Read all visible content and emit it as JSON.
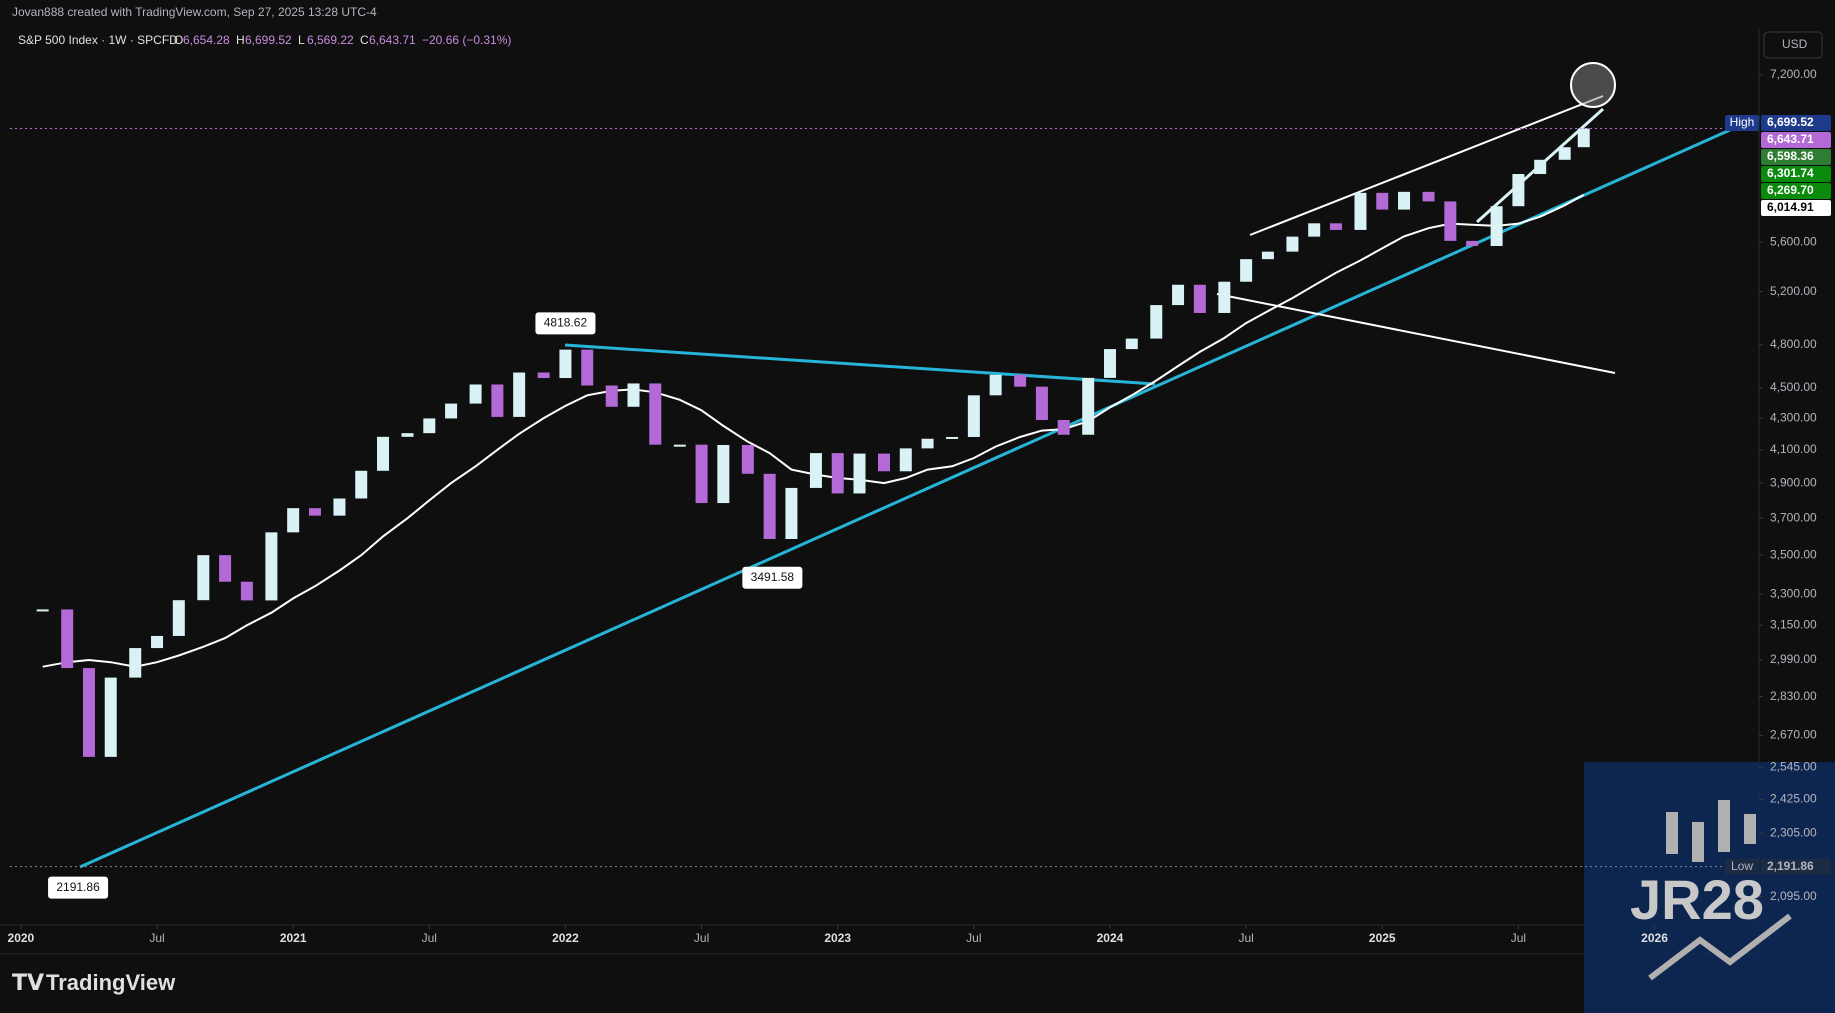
{
  "header": "Jovan888 created with TradingView.com, Sep 27, 2025 13:28 UTC-4",
  "footer": "TradingView",
  "watermark": "JR28",
  "chart_data": {
    "type": "candlestick",
    "symbol": "S&P 500 Index · 1W · SPCFD",
    "ohlc": [
      {
        "key": "O",
        "value": "6,654.28"
      },
      {
        "key": "H",
        "value": "6,699.52"
      },
      {
        "key": "L",
        "value": "6,569.22"
      },
      {
        "key": "C",
        "value": "6,643.71"
      }
    ],
    "change": "−20.66 (−0.31%)",
    "currency": "USD",
    "log_scale": true,
    "xlim": [
      2019.96,
      2026.38
    ],
    "ylim": [
      2008,
      7727
    ],
    "xticks": [
      2020,
      {
        "value": 2020.5,
        "label": "Jul"
      },
      2021,
      {
        "value": 2021.5,
        "label": "Jul"
      },
      2022,
      {
        "value": 2022.5,
        "label": "Jul"
      },
      2023,
      {
        "value": 2023.5,
        "label": "Jul"
      },
      2024,
      {
        "value": 2024.5,
        "label": "Jul"
      },
      2025,
      {
        "value": 2025.5,
        "label": "Jul"
      },
      2026
    ],
    "yticks": [
      {
        "value": 7200,
        "label": "7,200.00"
      },
      {
        "value": 5600,
        "label": "5,600.00"
      },
      {
        "value": 5200,
        "label": "5,200.00"
      },
      {
        "value": 4800,
        "label": "4,800.00"
      },
      {
        "value": 4500,
        "label": "4,500.00"
      },
      {
        "value": 4300,
        "label": "4,300.00"
      },
      {
        "value": 4100,
        "label": "4,100.00"
      },
      {
        "value": 3900,
        "label": "3,900.00"
      },
      {
        "value": 3700,
        "label": "3,700.00"
      },
      {
        "value": 3500,
        "label": "3,500.00"
      },
      {
        "value": 3300,
        "label": "3,300.00"
      },
      {
        "value": 3150,
        "label": "3,150.00"
      },
      {
        "value": 2990,
        "label": "2,990.00"
      },
      {
        "value": 2830,
        "label": "2,830.00"
      },
      {
        "value": 2670,
        "label": "2,670.00"
      },
      {
        "value": 2545,
        "label": "2,545.00"
      },
      {
        "value": 2425,
        "label": "2,425.00"
      },
      {
        "value": 2305,
        "label": "2,305.00"
      },
      {
        "value": 2095,
        "label": "2,095.00"
      }
    ],
    "x": [
      2020.08,
      2020.17,
      2020.25,
      2020.33,
      2020.42,
      2020.5,
      2020.58,
      2020.67,
      2020.75,
      2020.83,
      2020.92,
      2021.0,
      2021.08,
      2021.17,
      2021.25,
      2021.33,
      2021.42,
      2021.5,
      2021.58,
      2021.67,
      2021.75,
      2021.83,
      2021.92,
      2022.0,
      2022.08,
      2022.17,
      2022.25,
      2022.33,
      2022.42,
      2022.5,
      2022.58,
      2022.67,
      2022.75,
      2022.83,
      2022.92,
      2023.0,
      2023.08,
      2023.17,
      2023.25,
      2023.33,
      2023.42,
      2023.5,
      2023.58,
      2023.67,
      2023.75,
      2023.83,
      2023.92,
      2024.0,
      2024.08,
      2024.17,
      2024.25,
      2024.33,
      2024.42,
      2024.5,
      2024.58,
      2024.67,
      2024.75,
      2024.83,
      2024.92,
      2025.0,
      2025.08,
      2025.17,
      2025.25,
      2025.33,
      2025.42,
      2025.5,
      2025.58,
      2025.67,
      2025.74
    ],
    "series": [
      {
        "up_color": "#d9f2f5",
        "down_color": "#b36ad6",
        "values": [
          3226,
          2954,
          2585,
          2912,
          3044,
          3100,
          3271,
          3500,
          3363,
          3270,
          3622,
          3756,
          3714,
          3811,
          3973,
          4181,
          4204,
          4298,
          4395,
          4523,
          4308,
          4605,
          4567,
          4766,
          4516,
          4374,
          4530,
          4132,
          4132,
          3785,
          4130,
          3955,
          3586,
          3872,
          4080,
          3840,
          4077,
          3970,
          4109,
          4169,
          4180,
          4450,
          4589,
          4508,
          4288,
          4194,
          4568,
          4770,
          4846,
          5096,
          5254,
          5036,
          5278,
          5460,
          5522,
          5648,
          5762,
          5705,
          6032,
          5882,
          6041,
          5955,
          5612,
          5569,
          5912,
          6205,
          6339,
          6460,
          6643.71
        ]
      },
      {
        "color": "#ffffff",
        "values": [
          2960,
          2980,
          2990,
          2980,
          2960,
          2980,
          3010,
          3050,
          3090,
          3150,
          3210,
          3280,
          3340,
          3420,
          3500,
          3600,
          3700,
          3800,
          3900,
          4000,
          4100,
          4200,
          4300,
          4380,
          4450,
          4480,
          4490,
          4470,
          4420,
          4350,
          4250,
          4150,
          4080,
          3980,
          3950,
          3930,
          3920,
          3900,
          3930,
          3980,
          4000,
          4050,
          4120,
          4180,
          4220,
          4230,
          4280,
          4370,
          4450,
          4550,
          4650,
          4750,
          4850,
          4960,
          5050,
          5150,
          5250,
          5350,
          5450,
          5550,
          5650,
          5720,
          5760,
          5750,
          5740,
          5760,
          5820,
          5920,
          6014.91
        ]
      }
    ],
    "annotations": [
      {
        "x": 2020.21,
        "value": 2191.86
      },
      {
        "x": 2022.0,
        "value": 4818.62
      },
      {
        "x": 2022.76,
        "value": 3491.58
      }
    ],
    "price_labels": [
      {
        "tag": "High",
        "value": 6699.52,
        "label": "6,699.52",
        "color": "#1e3a8a",
        "text_color": "#ffffff"
      },
      {
        "value": 6643.71,
        "label": "6,643.71",
        "color": "#b36ad6",
        "text_color": "#ffffff",
        "dotted": true
      },
      {
        "value": 6598.36,
        "label": "6,598.36",
        "color": "#2e7d32",
        "text_color": "#ffffff"
      },
      {
        "value": 6301.74,
        "label": "6,301.74",
        "color": "#0a8a0a",
        "text_color": "#ffffff"
      },
      {
        "value": 6269.7,
        "label": "6,269.70",
        "color": "#0a8a0a",
        "text_color": "#ffffff"
      },
      {
        "value": 6014.91,
        "label": "6,014.91",
        "color": "#ffffff",
        "text_color": "#000000"
      },
      {
        "tag": "Low",
        "value": 2191.86,
        "label": "2,191.86",
        "color": "#1c2a44",
        "text_color": "#b2b5be",
        "dotted": true
      }
    ]
  }
}
